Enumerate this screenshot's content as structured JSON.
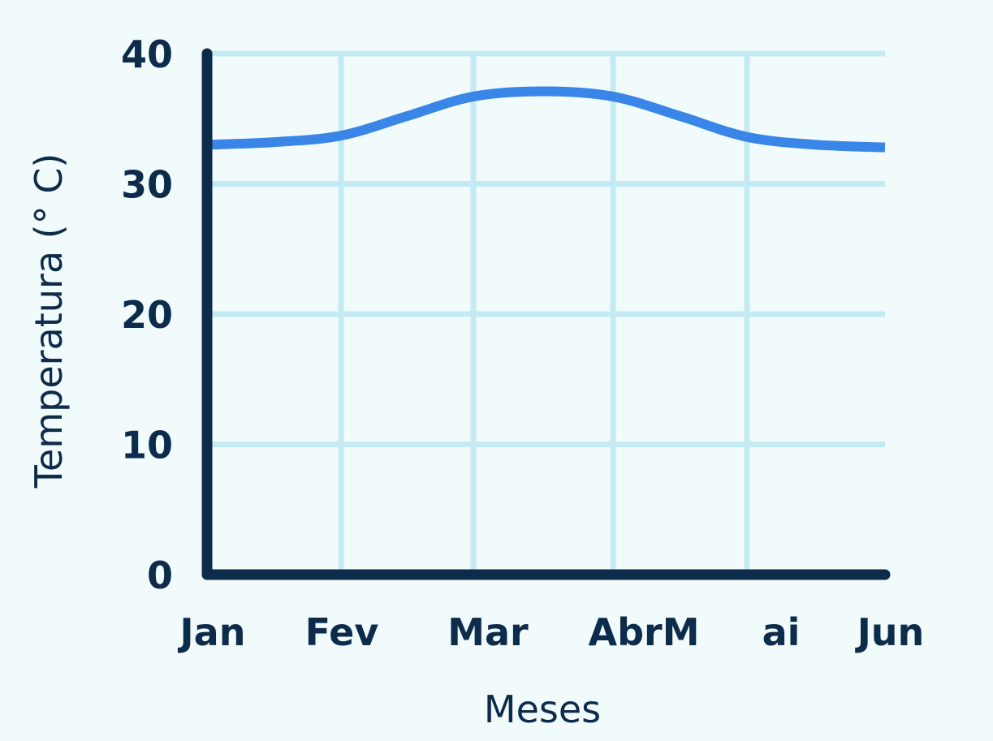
{
  "chart_data": {
    "type": "line",
    "x_tick_labels": [
      "Jan",
      "Fev",
      "Mar",
      "AbrM",
      "ai",
      "Jun"
    ],
    "y_tick_labels": [
      "0",
      "10",
      "20",
      "30",
      "40"
    ],
    "y_ticks": [
      0,
      10,
      20,
      30,
      40
    ],
    "ylim": [
      0,
      40
    ],
    "xlabel": "Meses",
    "ylabel": "Temperatura (° C)",
    "grid": true,
    "series": [
      {
        "x": [
          0,
          0.5,
          1,
          1.5,
          2,
          2.5,
          3,
          3.5,
          4,
          4.5,
          5
        ],
        "values": [
          33,
          33.2,
          33.7,
          35.2,
          36.7,
          37.1,
          36.7,
          35.2,
          33.6,
          33.0,
          32.8
        ]
      }
    ],
    "colors": {
      "line": "#3a86e8",
      "axis": "#0d2b4a",
      "grid": "#c4eaf3",
      "background": "#f2fbfc"
    }
  }
}
